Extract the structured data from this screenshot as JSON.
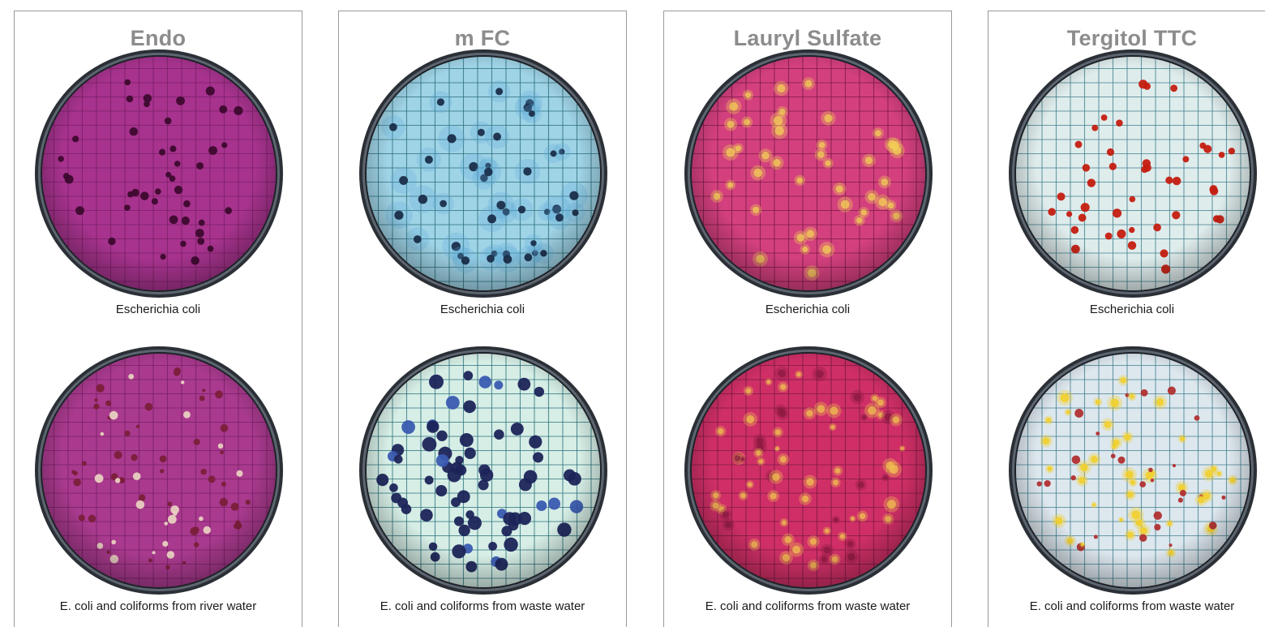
{
  "panels": [
    {
      "title": "Endo",
      "top_caption": "Escherichia coli",
      "bottom_caption": "E. coli and coliforms from river water",
      "colors": {
        "medium_top": "#a7338e",
        "medium_bottom": "#a93a8e",
        "grid": "#7a2066",
        "colony_top": "#3d0a2e",
        "colony_bottom": "#7a1f3a",
        "colony_bottom_alt": "#e8d0c0"
      }
    },
    {
      "title": "m FC",
      "top_caption": "Escherichia coli",
      "bottom_caption": "E. coli and coliforms from waste water",
      "colors": {
        "medium_top": "#9fd3e6",
        "medium_bottom": "#d6eee6",
        "grid": "#2a6f7a",
        "colony_top": "#1a2e4a",
        "colony_bottom": "#1c2458",
        "colony_bottom_alt": "#3a5ab0"
      }
    },
    {
      "title": "Lauryl Sulfate",
      "top_caption": "Escherichia coli",
      "bottom_caption": "E. coli and coliforms from waste water",
      "colors": {
        "medium_top": "#d4407e",
        "medium_bottom": "#cf2f66",
        "grid": "#7a1a46",
        "colony_top": "#f2cf55",
        "colony_bottom": "#f0c050",
        "colony_bottom_alt": "#8a1a40"
      }
    },
    {
      "title": "Tergitol TTC",
      "top_caption": "Escherichia coli",
      "bottom_caption": "E. coli and coliforms from waste water",
      "colors": {
        "medium_top": "#dfecec",
        "medium_bottom": "#dde7ee",
        "grid": "#3f7f8c",
        "colony_top": "#c41d10",
        "colony_bottom": "#f0d030",
        "colony_bottom_alt": "#b03030"
      }
    }
  ]
}
